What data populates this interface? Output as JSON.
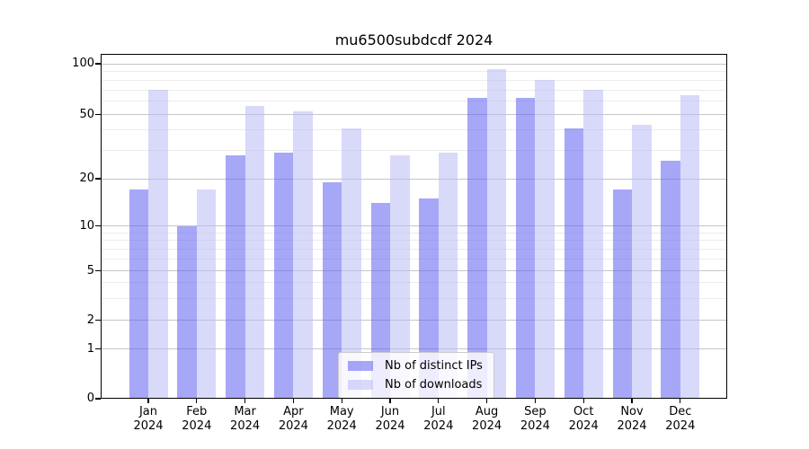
{
  "chart_data": {
    "type": "bar",
    "title": "mu6500subdcdf 2024",
    "x_categories": [
      "Jan",
      "Feb",
      "Mar",
      "Apr",
      "May",
      "Jun",
      "Jul",
      "Aug",
      "Sep",
      "Oct",
      "Nov",
      "Dec"
    ],
    "x_year_label": "2024",
    "series": [
      {
        "name": "Nb of distinct IPs",
        "color": "rgba(95,95,242,0.55)",
        "values": [
          17,
          10,
          28,
          29,
          19,
          14,
          15,
          63,
          63,
          41,
          17,
          26
        ]
      },
      {
        "name": "Nb of downloads",
        "color": "rgba(186,186,246,0.55)",
        "values": [
          70,
          17,
          56,
          52,
          41,
          28,
          29,
          93,
          80,
          70,
          43,
          65
        ]
      }
    ],
    "y_axis": {
      "scale": "symlog",
      "tick_labels": [
        "100",
        "50",
        "20",
        "10",
        "5",
        "2",
        "1",
        "0"
      ],
      "tick_values": [
        100,
        50,
        20,
        10,
        5,
        2,
        1,
        0
      ],
      "minor_tick_values": [
        3,
        4,
        6,
        7,
        8,
        9,
        30,
        40,
        60,
        70,
        80,
        90
      ]
    },
    "legend": {
      "position": "lower center"
    },
    "grid": true
  }
}
